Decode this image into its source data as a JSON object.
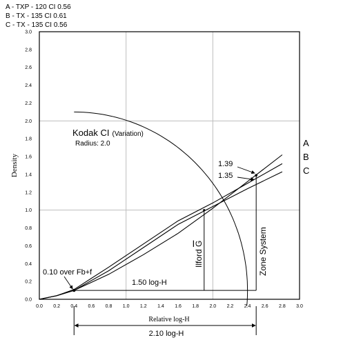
{
  "legend": [
    "A - TXP - 120 CI 0.56",
    "B - TX - 135  CI 0.61",
    "C - TX - 135  CI 0.56"
  ],
  "chart_data": {
    "type": "line",
    "xlabel": "Relative log-H",
    "ylabel": "Density",
    "xlim": [
      0,
      3.0
    ],
    "ylim": [
      0,
      3.0
    ],
    "x_ticks": [
      "0.0",
      "0.2",
      "0.4",
      "0.6",
      "0.8",
      "1.0",
      "1.2",
      "1.4",
      "1.6",
      "1.8",
      "2.0",
      "2.2",
      "2.4",
      "2.6",
      "2.8",
      "3.0"
    ],
    "y_ticks": [
      "0.0",
      "0.2",
      "0.4",
      "0.6",
      "0.8",
      "1.0",
      "1.2",
      "1.4",
      "1.6",
      "1.8",
      "2.0",
      "2.2",
      "2.4",
      "2.6",
      "2.8",
      "3.0"
    ],
    "grid": "major gridlines every 1.0",
    "series": [
      {
        "name": "A",
        "x": [
          0.0,
          0.2,
          0.4,
          0.8,
          1.2,
          1.6,
          2.0,
          2.4,
          2.8
        ],
        "y": [
          0.0,
          0.04,
          0.1,
          0.28,
          0.5,
          0.74,
          1.02,
          1.32,
          1.62
        ]
      },
      {
        "name": "B",
        "x": [
          0.0,
          0.2,
          0.4,
          0.8,
          1.2,
          1.6,
          2.0,
          2.4,
          2.8
        ],
        "y": [
          0.0,
          0.04,
          0.11,
          0.36,
          0.62,
          0.88,
          1.08,
          1.3,
          1.52
        ]
      },
      {
        "name": "C",
        "x": [
          0.0,
          0.2,
          0.4,
          0.8,
          1.2,
          1.6,
          2.0,
          2.4,
          2.8
        ],
        "y": [
          0.0,
          0.04,
          0.1,
          0.32,
          0.58,
          0.84,
          1.04,
          1.24,
          1.43
        ]
      }
    ],
    "annotations": {
      "kodak_title": "Kodak CI",
      "kodak_variation": "(Variation)",
      "radius": "Radius: 2.0",
      "point_139": "1.39",
      "point_135": "1.35",
      "fb_label": "0.10 over Fb+f",
      "span_150": "1.50 log-H",
      "span_210": "2.10 log-H",
      "ilford": "Ilford ",
      "ilford_g": "G",
      "zone": "Zone System",
      "series_labels": [
        "A",
        "B",
        "C"
      ]
    },
    "reference_lines": {
      "arc": {
        "center_x": 0.4,
        "center_y": 0.1,
        "radius": 2.0
      },
      "base_y": 0.1,
      "base_start_x": 0.4,
      "base_end_x": 2.5,
      "arc_end_x": 2.38,
      "ilford_x": 1.9,
      "ilford_top_y": 1.0,
      "zone_x": 2.5,
      "zone_top_y": 1.39
    }
  }
}
